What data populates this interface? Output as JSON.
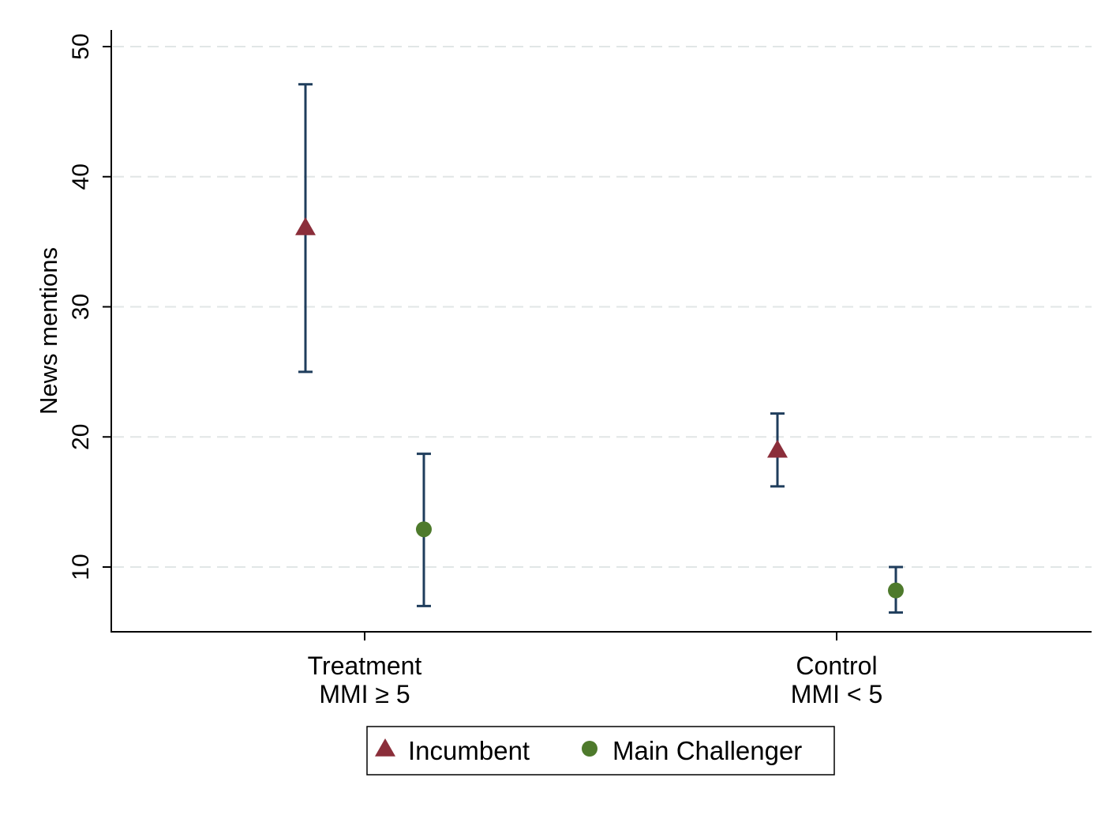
{
  "chart_data": {
    "type": "scatter",
    "subtype": "point-estimates-with-confidence-intervals",
    "title": "",
    "xlabel": "",
    "ylabel": "News mentions",
    "ylim": [
      5,
      51
    ],
    "yticks": [
      10,
      20,
      30,
      40,
      50
    ],
    "grid": true,
    "legend_position": "bottom-center",
    "categories": [
      {
        "line1": "Treatment",
        "line2": "MMI ≥ 5"
      },
      {
        "line1": "Control",
        "line2": "MMI < 5"
      }
    ],
    "series": [
      {
        "name": "Incumbent",
        "marker": "triangle",
        "color": "#8B2E3A",
        "points": [
          {
            "category": 0,
            "offset": -0.25,
            "value": 36.1,
            "ci_low": 25.0,
            "ci_high": 47.1
          },
          {
            "category": 1,
            "offset": -0.25,
            "value": 19.0,
            "ci_low": 16.2,
            "ci_high": 21.8
          }
        ]
      },
      {
        "name": "Main Challenger",
        "marker": "circle",
        "color": "#4E7A2C",
        "points": [
          {
            "category": 0,
            "offset": 0.25,
            "value": 12.9,
            "ci_low": 7.0,
            "ci_high": 18.7
          },
          {
            "category": 1,
            "offset": 0.25,
            "value": 8.2,
            "ci_low": 6.5,
            "ci_high": 10.0
          }
        ]
      }
    ],
    "ci_color": "#1F3D5C",
    "grid_color": "#E1E6E6"
  }
}
